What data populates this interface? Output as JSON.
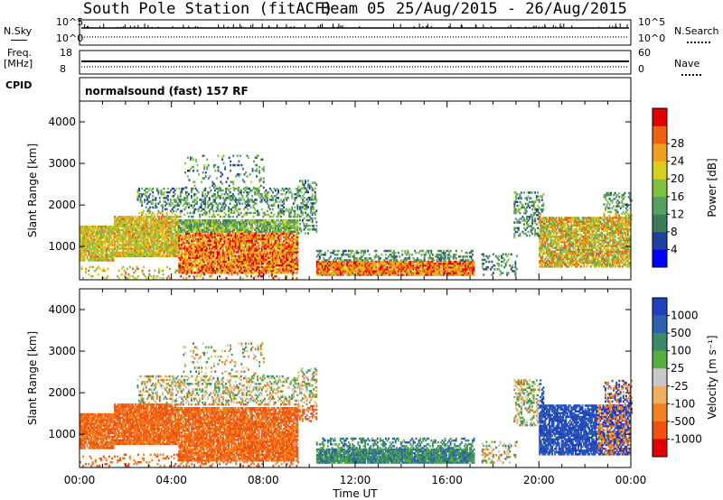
{
  "header": {
    "station": "South Pole Station (fitACF)",
    "beam": "Beam 05",
    "dates": "25/Aug/2015 - 26/Aug/2015"
  },
  "panels": {
    "nsky_label": "N.Sky",
    "nsky_top": "10^5",
    "nsky_bottom": "10^0",
    "nsearch_label": "N.Search",
    "nsearch_top": "10^5",
    "nsearch_bottom": "10^0",
    "freq_label_1": "Freq.",
    "freq_label_2": "[MHz]",
    "freq_top": "18",
    "freq_bottom": "8",
    "nave_label": "Nave",
    "nave_top": "60",
    "nave_bottom": "0",
    "cpid_label": "CPID",
    "cpid_value": "normalsound (fast) 157 RF"
  },
  "chart_data": [
    {
      "type": "heatmap",
      "name": "power",
      "ylabel": "Slant Range [km]",
      "yticks": [
        "1000",
        "2000",
        "3000",
        "4000"
      ],
      "ylim": [
        200,
        4500
      ],
      "xlim": [
        0,
        24
      ],
      "colorbar": {
        "label": "Power [dB]",
        "ticks": [
          "4",
          "8",
          "12",
          "16",
          "20",
          "24",
          "28"
        ],
        "range": [
          0,
          32
        ],
        "colors": [
          "#0000ff",
          "#2040a0",
          "#3c7a5a",
          "#58a060",
          "#80c040",
          "#d8d020",
          "#f0a020",
          "#f06010",
          "#e00000"
        ]
      }
    },
    {
      "type": "heatmap",
      "name": "velocity",
      "ylabel": "Slant Range [km]",
      "yticks": [
        "1000",
        "2000",
        "3000",
        "4000"
      ],
      "ylim": [
        200,
        4500
      ],
      "xlim": [
        0,
        24
      ],
      "xticks": [
        "00:00",
        "04:00",
        "08:00",
        "12:00",
        "16:00",
        "20:00",
        "00:00"
      ],
      "xlabel": "Time UT",
      "colorbar": {
        "label": "Velocity [m s⁻¹]",
        "ticks": [
          "1000",
          "500",
          "100",
          "25",
          "-25",
          "-100",
          "-500",
          "-1000"
        ],
        "colors": [
          "#2040c0",
          "#2c60b0",
          "#3a8a6a",
          "#56b040",
          "#c8c8c8",
          "#f0b060",
          "#f08020",
          "#f05010",
          "#e00000"
        ]
      }
    }
  ]
}
